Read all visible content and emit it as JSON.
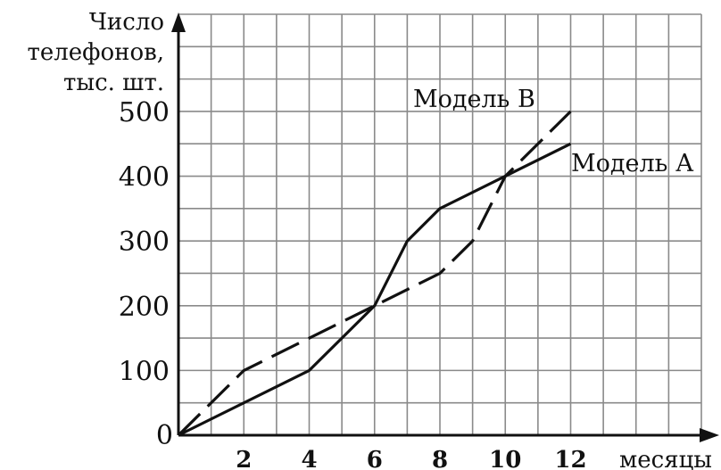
{
  "chart_data": {
    "type": "line",
    "ylabel_lines": [
      "Число",
      "телефонов,",
      "тыс. шт."
    ],
    "xlabel": "месяцы",
    "origin_label": "0",
    "xlim": [
      0,
      16
    ],
    "ylim": [
      0,
      650
    ],
    "x_grid_step": 1,
    "y_grid_step": 50,
    "x_ticks": [
      2,
      4,
      6,
      8,
      10,
      12
    ],
    "y_ticks": [
      100,
      200,
      300,
      400,
      500
    ],
    "grid": true,
    "series": [
      {
        "name": "Модель А",
        "style": "solid",
        "x": [
          0,
          4,
          6,
          7,
          8,
          12
        ],
        "y": [
          0,
          100,
          200,
          300,
          350,
          450
        ]
      },
      {
        "name": "Модель В",
        "style": "dashed",
        "x": [
          0,
          2,
          6,
          8,
          9,
          10,
          12
        ],
        "y": [
          0,
          100,
          200,
          250,
          300,
          400,
          500
        ]
      }
    ]
  }
}
